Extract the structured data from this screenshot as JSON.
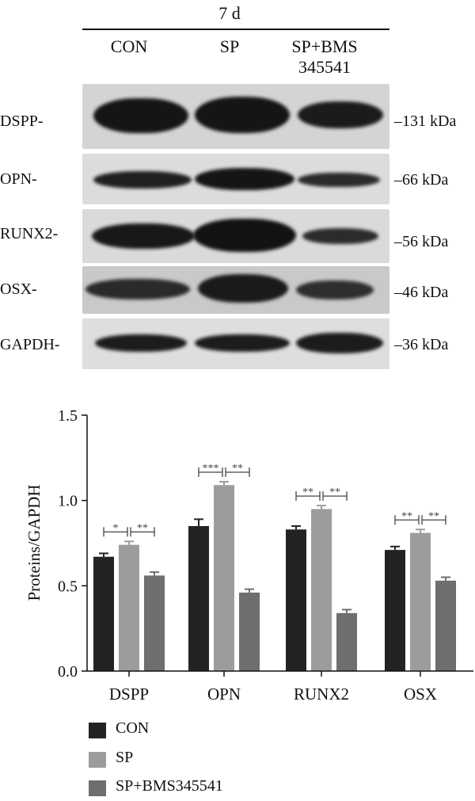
{
  "western_blot": {
    "timepoint": "7 d",
    "lanes": [
      "CON",
      "SP",
      "SP+BMS\n345541"
    ],
    "rows": [
      {
        "protein": "DSPP-",
        "size": "–131 kDa"
      },
      {
        "protein": "OPN-",
        "size": "–66 kDa"
      },
      {
        "protein": "RUNX2-",
        "size": "–56 kDa"
      },
      {
        "protein": "OSX-",
        "size": "–46 kDa"
      },
      {
        "protein": "GAPDH-",
        "size": "–36 kDa"
      }
    ]
  },
  "chart_data": {
    "type": "bar",
    "categories": [
      "DSPP",
      "OPN",
      "RUNX2",
      "OSX"
    ],
    "series": [
      {
        "name": "CON",
        "color": "#232323",
        "values": [
          0.67,
          0.85,
          0.83,
          0.71
        ],
        "errors": [
          0.02,
          0.04,
          0.02,
          0.02
        ]
      },
      {
        "name": "SP",
        "color": "#9b9c9e",
        "values": [
          0.74,
          1.09,
          0.95,
          0.81
        ],
        "errors": [
          0.02,
          0.02,
          0.02,
          0.02
        ]
      },
      {
        "name": "SP+BMS345541",
        "color": "#6d6e70",
        "values": [
          0.56,
          0.46,
          0.34,
          0.53
        ],
        "errors": [
          0.02,
          0.02,
          0.02,
          0.02
        ]
      }
    ],
    "ylabel": "Proteins/GAPDH",
    "ylim": [
      0,
      1.5
    ],
    "yticks": [
      "0.0",
      "0.5",
      "1.0",
      "1.5"
    ],
    "significance": [
      [
        "*",
        "**"
      ],
      [
        "***",
        "**"
      ],
      [
        "**",
        "**"
      ],
      [
        "**",
        "**"
      ]
    ],
    "legend": [
      "CON",
      "SP",
      "SP+BMS345541"
    ],
    "legend_position": "bottom-left"
  }
}
